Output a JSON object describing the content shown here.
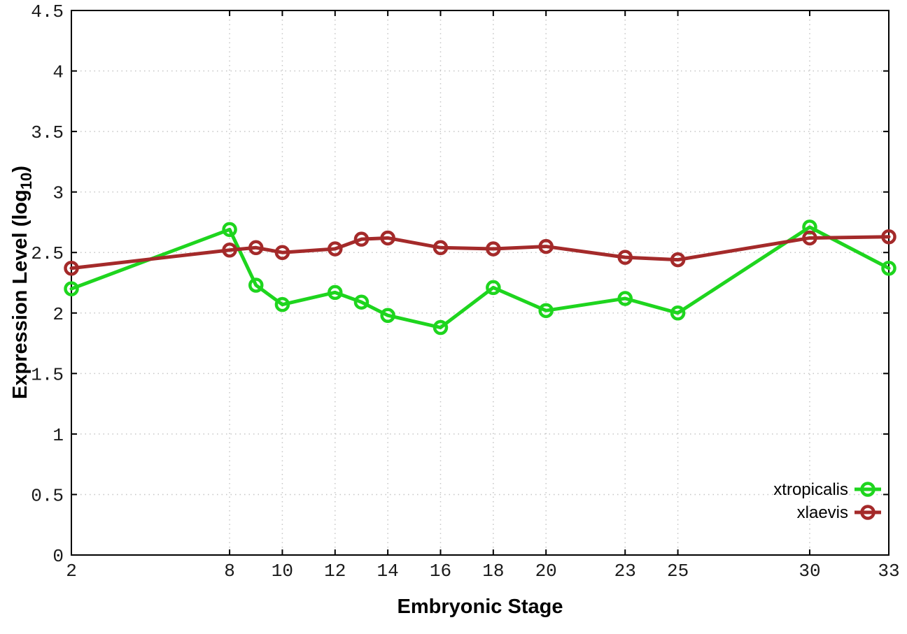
{
  "chart_data": {
    "type": "line",
    "title": "",
    "xlabel": "Embryonic Stage",
    "ylabel": "Expression Level (log10)",
    "ylabel_rich": {
      "prefix": "Expression Level (log",
      "sub": "10",
      "suffix": ")"
    },
    "x": [
      2,
      8,
      9,
      10,
      12,
      13,
      14,
      16,
      18,
      20,
      23,
      25,
      30,
      33
    ],
    "xlim": [
      2,
      33
    ],
    "ylim": [
      0,
      4.5
    ],
    "x_ticks": [
      2,
      8,
      10,
      12,
      14,
      16,
      18,
      20,
      23,
      25,
      30,
      33
    ],
    "x_tick_labels": [
      "2",
      "8",
      "10",
      "12",
      "14",
      "16",
      "18",
      "20",
      "23",
      "25",
      "30",
      "33"
    ],
    "y_ticks": [
      0,
      0.5,
      1,
      1.5,
      2,
      2.5,
      3,
      3.5,
      4,
      4.5
    ],
    "y_tick_labels": [
      "0",
      "0.5",
      "1",
      "1.5",
      "2",
      "2.5",
      "3",
      "3.5",
      "4",
      "4.5"
    ],
    "grid": true,
    "legend_position": "bottom-right-inside",
    "series": [
      {
        "name": "xtropicalis",
        "color": "#1ED51E",
        "marker": "open-circle",
        "values": [
          2.2,
          2.69,
          2.23,
          2.07,
          2.17,
          2.09,
          1.98,
          1.88,
          2.21,
          2.02,
          2.12,
          2.0,
          2.71,
          2.37
        ]
      },
      {
        "name": "xlaevis",
        "color": "#A42A2A",
        "marker": "open-circle",
        "values": [
          2.37,
          2.52,
          2.54,
          2.5,
          2.53,
          2.61,
          2.62,
          2.54,
          2.53,
          2.55,
          2.46,
          2.44,
          2.62,
          2.63
        ]
      }
    ],
    "colors": {
      "background": "#ffffff",
      "border": "#000000",
      "grid": "#c6c6c6"
    }
  }
}
